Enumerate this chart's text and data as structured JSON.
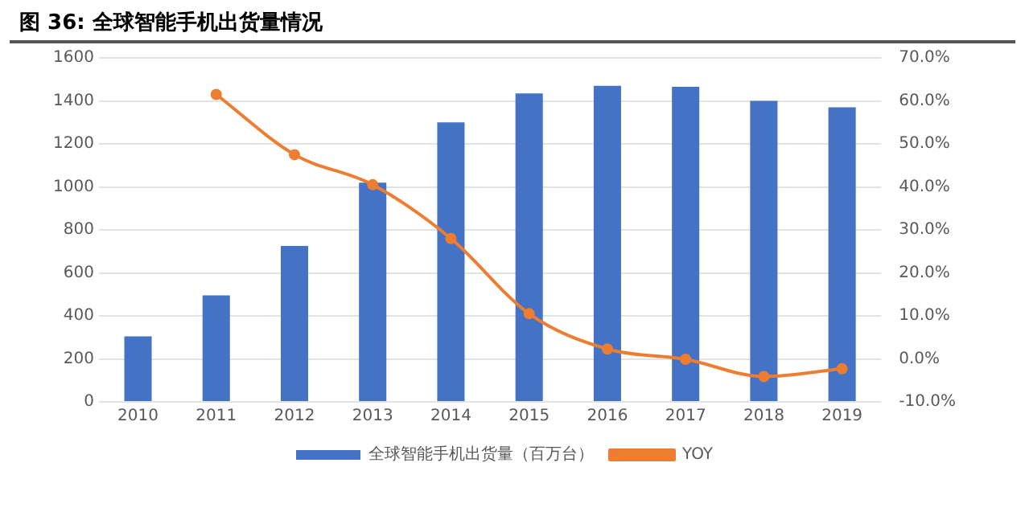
{
  "chart_data": {
    "type": "bar",
    "title": "图 36:  全球智能手机出货量情况",
    "categories": [
      "2010",
      "2011",
      "2012",
      "2013",
      "2014",
      "2015",
      "2016",
      "2017",
      "2018",
      "2019"
    ],
    "series": [
      {
        "name": "全球智能手机出货量（百万台）",
        "color": "#4472c4",
        "values": [
          305,
          495,
          725,
          1020,
          1300,
          1435,
          1470,
          1465,
          1400,
          1370
        ]
      },
      {
        "name": "YOY",
        "type": "line",
        "axis": "y2",
        "color": "#ed7d31",
        "marker": "circle",
        "values": [
          null,
          61.5,
          47.5,
          40.5,
          28,
          10.5,
          2.3,
          -0.1,
          -4.1,
          -2.3
        ]
      }
    ],
    "ylim": [
      0,
      1600
    ],
    "yticks": [
      0,
      200,
      400,
      600,
      800,
      1000,
      1200,
      1400,
      1600
    ],
    "y2lim": [
      -10,
      70
    ],
    "y2ticks": [
      {
        "value": -10,
        "label": "-10.0%"
      },
      {
        "value": 0,
        "label": "0.0%"
      },
      {
        "value": 10,
        "label": "10.0%"
      },
      {
        "value": 20,
        "label": "20.0%"
      },
      {
        "value": 30,
        "label": "30.0%"
      },
      {
        "value": 40,
        "label": "40.0%"
      },
      {
        "value": 50,
        "label": "50.0%"
      },
      {
        "value": 60,
        "label": "60.0%"
      },
      {
        "value": 70,
        "label": "70.0%"
      }
    ],
    "grid": "y",
    "legend": "bottom"
  }
}
